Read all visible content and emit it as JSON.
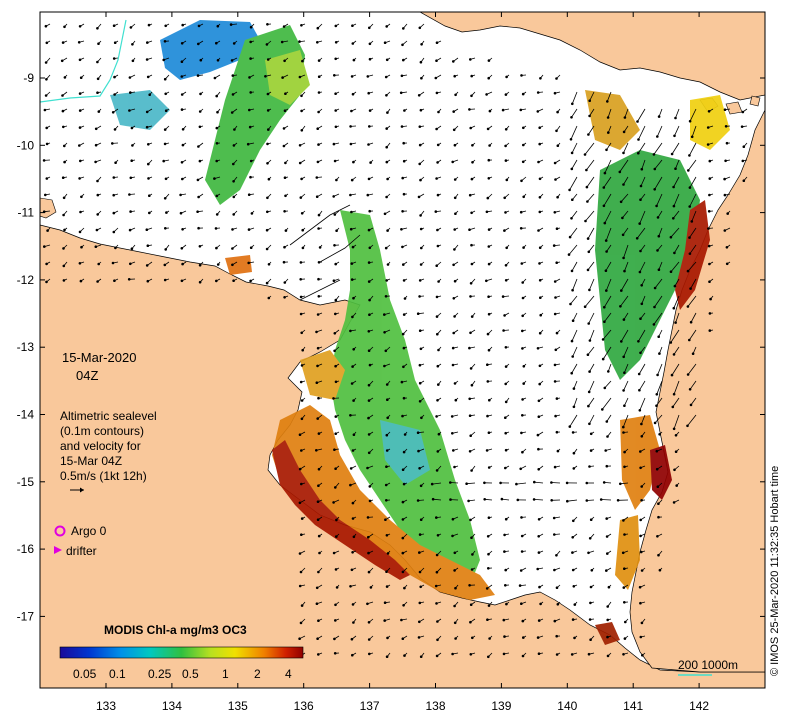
{
  "map": {
    "date_label": "15-Mar-2020",
    "time_label": "04Z",
    "legend_lines": [
      "Altimetric sealevel",
      "(0.1m contours)",
      "and velocity for",
      "15-Mar 04Z",
      "0.5m/s (1kt 12h)"
    ],
    "argo_label": "Argo 0",
    "drifter_label": "drifter",
    "colorbar_title": "MODIS Chl-a mg/m3 OC3",
    "colorbar_ticks": [
      "0.05",
      "0.1",
      "0.25",
      "0.5",
      "1",
      "2",
      "4"
    ],
    "scale_label": "200  1000m",
    "side_credit": "© IMOS 25-Mar-2020 11:32:35 Hobart time",
    "lon_ticks": [
      "133",
      "134",
      "135",
      "136",
      "137",
      "138",
      "139",
      "140",
      "141",
      "142"
    ],
    "lat_ticks": [
      "-9",
      "-10",
      "-11",
      "-12",
      "-13",
      "-14",
      "-15",
      "-16",
      "-17"
    ],
    "colors": {
      "land": "#f9c89b",
      "ocean": "#ffffff",
      "argo": "#e000e0",
      "drifter": "#e000e0",
      "scale_line": "#40e0d0"
    }
  }
}
